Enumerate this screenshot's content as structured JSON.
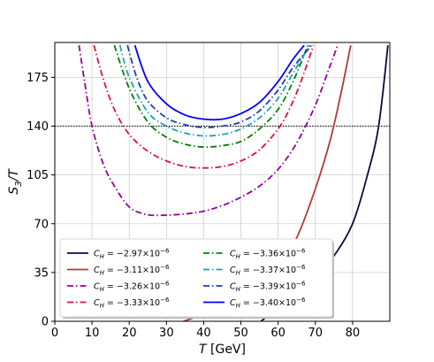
{
  "chart_data": {
    "type": "line",
    "title": "",
    "xlabel": "T [GeV]",
    "ylabel": "S3/T",
    "xlim": [
      0,
      90
    ],
    "ylim": [
      0,
      200
    ],
    "xticks": [
      0,
      10,
      20,
      30,
      40,
      50,
      60,
      70,
      80
    ],
    "yticks": [
      0,
      35,
      70,
      105,
      140,
      175
    ],
    "grid": true,
    "legend_position": "lower-left",
    "reference_line": {
      "y": 140,
      "style": "dotted",
      "color": "#000000"
    },
    "series": [
      {
        "name": "C_H = -2.97×10^-6",
        "color": "#0b0b3b",
        "style": "solid",
        "x": [
          55.4,
          60,
          65,
          70,
          75,
          80,
          84,
          87,
          89.5
        ],
        "y": [
          0,
          10,
          20,
          33,
          47,
          70,
          105,
          140,
          198
        ]
      },
      {
        "name": "C_H = -3.11×10^-6",
        "color": "#b03a3a",
        "style": "solid",
        "x": [
          34.6,
          40,
          45,
          50,
          55,
          60,
          65,
          70,
          74,
          77,
          79.5
        ],
        "y": [
          0,
          5,
          10,
          16,
          25,
          38,
          60,
          95,
          130,
          165,
          198
        ]
      },
      {
        "name": "C_H = -3.26×10^-6",
        "color": "#990099",
        "style": "dashdot",
        "x": [
          6.5,
          8,
          10,
          13,
          16,
          20,
          24,
          28,
          35,
          40,
          45,
          50,
          55,
          60,
          65,
          70,
          73.5,
          76
        ],
        "y": [
          198,
          172,
          140,
          113,
          97,
          82,
          77,
          76,
          77,
          79,
          83,
          89,
          97,
          109,
          128,
          155,
          180,
          198
        ]
      },
      {
        "name": "C_H = -3.33×10^-6",
        "color": "#dc143c",
        "style": "dashdot",
        "x": [
          10.5,
          13,
          16,
          20,
          25,
          30,
          35,
          40,
          45,
          50,
          55,
          60,
          63,
          66,
          69.5
        ],
        "y": [
          198,
          174,
          152,
          134,
          122,
          115,
          111,
          110,
          111,
          115,
          123,
          138,
          152,
          171,
          198
        ]
      },
      {
        "name": "C_H = -3.36×10^-6",
        "color": "#008000",
        "style": "dashdot",
        "x": [
          16,
          20,
          25,
          30,
          35,
          40,
          45,
          50,
          55,
          60,
          64,
          68
        ],
        "y": [
          198,
          167,
          143,
          132,
          127,
          125,
          126,
          129,
          138,
          152,
          172,
          198
        ]
      },
      {
        "name": "C_H = -3.37×10^-6",
        "color": "#17a2b8",
        "style": "dashdot",
        "x": [
          17.5,
          20,
          25,
          30,
          35,
          40,
          45,
          50,
          55,
          60,
          64,
          68.5
        ],
        "y": [
          198,
          175,
          150,
          140,
          135,
          133,
          134,
          138,
          146,
          160,
          178,
          198
        ]
      },
      {
        "name": "C_H = -3.39×10^-6",
        "color": "#1c3fa8",
        "style": "dashdot",
        "x": [
          19.5,
          22,
          25,
          30,
          35,
          40,
          45,
          50,
          55,
          60,
          64,
          69
        ],
        "y": [
          198,
          175,
          158,
          146,
          141,
          139,
          140,
          143,
          151,
          166,
          182,
          198
        ]
      },
      {
        "name": "C_H = -3.40×10^-6",
        "color": "#0000ff",
        "style": "solid",
        "x": [
          21.5,
          25,
          30,
          35,
          40,
          45,
          50,
          55,
          60,
          64,
          67
        ],
        "y": [
          198,
          172,
          156,
          148,
          145,
          145,
          149,
          157,
          172,
          188,
          198
        ]
      }
    ],
    "legend_labels": [
      {
        "base": "C",
        "sub": "H",
        "text": " = −2.97×10",
        "exp": "−6"
      },
      {
        "base": "C",
        "sub": "H",
        "text": " = −3.36×10",
        "exp": "−6"
      },
      {
        "base": "C",
        "sub": "H",
        "text": " = −3.11×10",
        "exp": "−6"
      },
      {
        "base": "C",
        "sub": "H",
        "text": " = −3.37×10",
        "exp": "−6"
      },
      {
        "base": "C",
        "sub": "H",
        "text": " = −3.26×10",
        "exp": "−6"
      },
      {
        "base": "C",
        "sub": "H",
        "text": " = −3.39×10",
        "exp": "−6"
      },
      {
        "base": "C",
        "sub": "H",
        "text": " = −3.33×10",
        "exp": "−6"
      },
      {
        "base": "C",
        "sub": "H",
        "text": " = −3.40×10",
        "exp": "−6"
      }
    ],
    "legend_order": [
      0,
      4,
      1,
      5,
      2,
      6,
      3,
      7
    ]
  }
}
